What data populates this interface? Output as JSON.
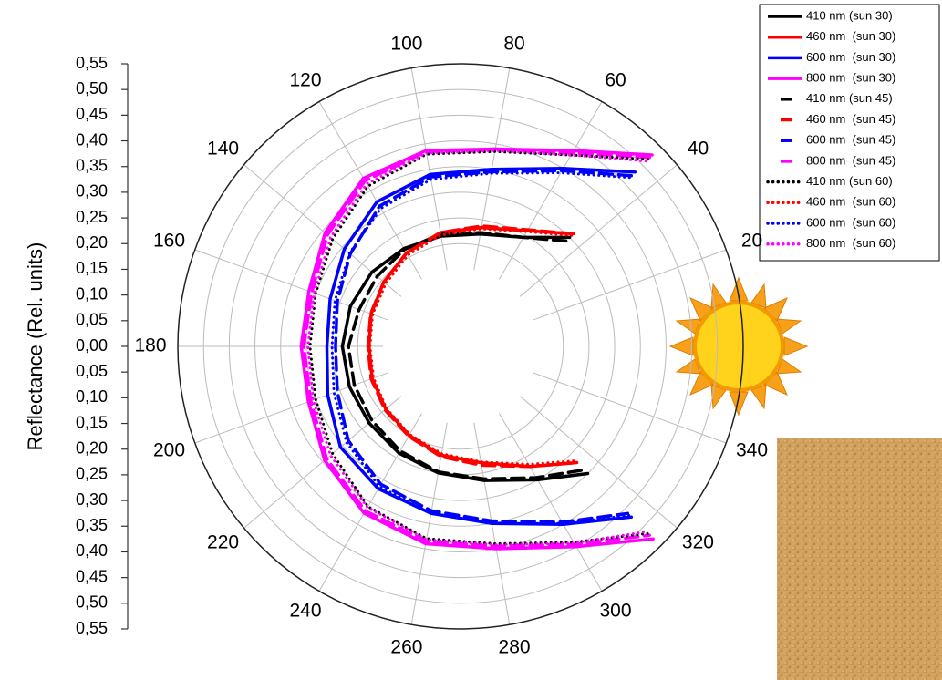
{
  "chart_data": {
    "type": "polar",
    "ylabel": "Reflectance (Rel. units)",
    "rlim": [
      0,
      0.55
    ],
    "yticks_upper": [
      {
        "value": 0.55,
        "label": "0,55"
      },
      {
        "value": 0.5,
        "label": "0,50"
      },
      {
        "value": 0.45,
        "label": "0,45"
      },
      {
        "value": 0.4,
        "label": "0,40"
      },
      {
        "value": 0.35,
        "label": "0,35"
      },
      {
        "value": 0.3,
        "label": "0,30"
      },
      {
        "value": 0.25,
        "label": "0,25"
      },
      {
        "value": 0.2,
        "label": "0,20"
      },
      {
        "value": 0.15,
        "label": "0,15"
      },
      {
        "value": 0.1,
        "label": "0,10"
      },
      {
        "value": 0.05,
        "label": "0,05"
      },
      {
        "value": 0,
        "label": "0,00"
      }
    ],
    "yticks_lower": [
      {
        "value": 0.05,
        "label": "0,05"
      },
      {
        "value": 0.1,
        "label": "0,10"
      },
      {
        "value": 0.15,
        "label": "0,15"
      },
      {
        "value": 0.2,
        "label": "0,20"
      },
      {
        "value": 0.25,
        "label": "0,25"
      },
      {
        "value": 0.3,
        "label": "0,30"
      },
      {
        "value": 0.35,
        "label": "0,35"
      },
      {
        "value": 0.4,
        "label": "0,40"
      },
      {
        "value": 0.45,
        "label": "0,45"
      },
      {
        "value": 0.5,
        "label": "0,50"
      },
      {
        "value": 0.55,
        "label": "0,55"
      }
    ],
    "thetaticks": [
      20,
      40,
      60,
      80,
      100,
      120,
      140,
      160,
      180,
      200,
      220,
      240,
      260,
      280,
      300,
      320,
      340
    ],
    "grid": true,
    "theta": [
      45,
      60,
      80,
      100,
      120,
      140,
      160,
      180,
      200,
      220,
      240,
      260,
      280,
      300,
      315
    ],
    "series": [
      {
        "name": "410 nm (sun 30)",
        "color": "#000000",
        "linestyle": "solid",
        "values": [
          0.3,
          0.245,
          0.222,
          0.218,
          0.22,
          0.225,
          0.228,
          0.23,
          0.23,
          0.232,
          0.24,
          0.25,
          0.265,
          0.3,
          0.35
        ]
      },
      {
        "name": "460 nm  (sun 30)",
        "color": "#ff0000",
        "linestyle": "solid",
        "values": [
          0.31,
          0.26,
          0.235,
          0.225,
          0.21,
          0.195,
          0.185,
          0.178,
          0.183,
          0.19,
          0.2,
          0.215,
          0.23,
          0.27,
          0.32
        ]
      },
      {
        "name": "600 nm  (sun 30)",
        "color": "#0000ff",
        "linestyle": "solid",
        "values": [
          0.48,
          0.4,
          0.35,
          0.34,
          0.325,
          0.295,
          0.27,
          0.26,
          0.275,
          0.305,
          0.32,
          0.33,
          0.35,
          0.4,
          0.47
        ]
      },
      {
        "name": "800 nm  (sun 30)",
        "color": "#ff00ff",
        "linestyle": "solid",
        "values": [
          0.527,
          0.44,
          0.39,
          0.387,
          0.378,
          0.344,
          0.314,
          0.31,
          0.315,
          0.345,
          0.375,
          0.39,
          0.4,
          0.45,
          0.53
        ]
      },
      {
        "name": "410 nm (sun 45)",
        "color": "#000000",
        "linestyle": "dash",
        "values": [
          0.29,
          0.245,
          0.225,
          0.222,
          0.218,
          0.212,
          0.21,
          0.218,
          0.22,
          0.225,
          0.235,
          0.248,
          0.262,
          0.295,
          0.34
        ]
      },
      {
        "name": "460 nm  (sun 45)",
        "color": "#ff0000",
        "linestyle": "dash",
        "values": [
          0.31,
          0.262,
          0.238,
          0.225,
          0.21,
          0.195,
          0.186,
          0.18,
          0.185,
          0.192,
          0.202,
          0.218,
          0.235,
          0.27,
          0.32
        ]
      },
      {
        "name": "600 nm  (sun 45)",
        "color": "#0000ff",
        "linestyle": "dash",
        "values": [
          0.47,
          0.395,
          0.345,
          0.335,
          0.315,
          0.28,
          0.255,
          0.243,
          0.255,
          0.285,
          0.31,
          0.325,
          0.345,
          0.395,
          0.46
        ]
      },
      {
        "name": "800 nm  (sun 45)",
        "color": "#ff00ff",
        "linestyle": "dash",
        "values": [
          0.52,
          0.435,
          0.39,
          0.385,
          0.372,
          0.338,
          0.308,
          0.305,
          0.31,
          0.34,
          0.37,
          0.385,
          0.395,
          0.445,
          0.52
        ]
      },
      {
        "name": "410 nm (sun 60)",
        "color": "#000000",
        "linestyle": "dot",
        "values": [
          0.515,
          0.43,
          0.385,
          0.38,
          0.36,
          0.325,
          0.3,
          0.293,
          0.3,
          0.325,
          0.36,
          0.38,
          0.39,
          0.44,
          0.515
        ]
      },
      {
        "name": "460 nm  (sun 60)",
        "color": "#ff0000",
        "linestyle": "dot",
        "values": [
          0.305,
          0.258,
          0.232,
          0.22,
          0.205,
          0.19,
          0.182,
          0.176,
          0.18,
          0.188,
          0.198,
          0.212,
          0.228,
          0.265,
          0.315
        ]
      },
      {
        "name": "600 nm  (sun 60)",
        "color": "#0000ff",
        "linestyle": "dot",
        "values": [
          0.465,
          0.39,
          0.342,
          0.33,
          0.31,
          0.282,
          0.26,
          0.25,
          0.262,
          0.29,
          0.315,
          0.33,
          0.35,
          0.398,
          0.465
        ]
      },
      {
        "name": "800 nm  (sun 60)",
        "color": "#ff00ff",
        "linestyle": "dot",
        "values": [
          0.51,
          0.43,
          0.387,
          0.382,
          0.365,
          0.33,
          0.303,
          0.297,
          0.305,
          0.33,
          0.362,
          0.382,
          0.392,
          0.442,
          0.51
        ]
      }
    ]
  }
}
